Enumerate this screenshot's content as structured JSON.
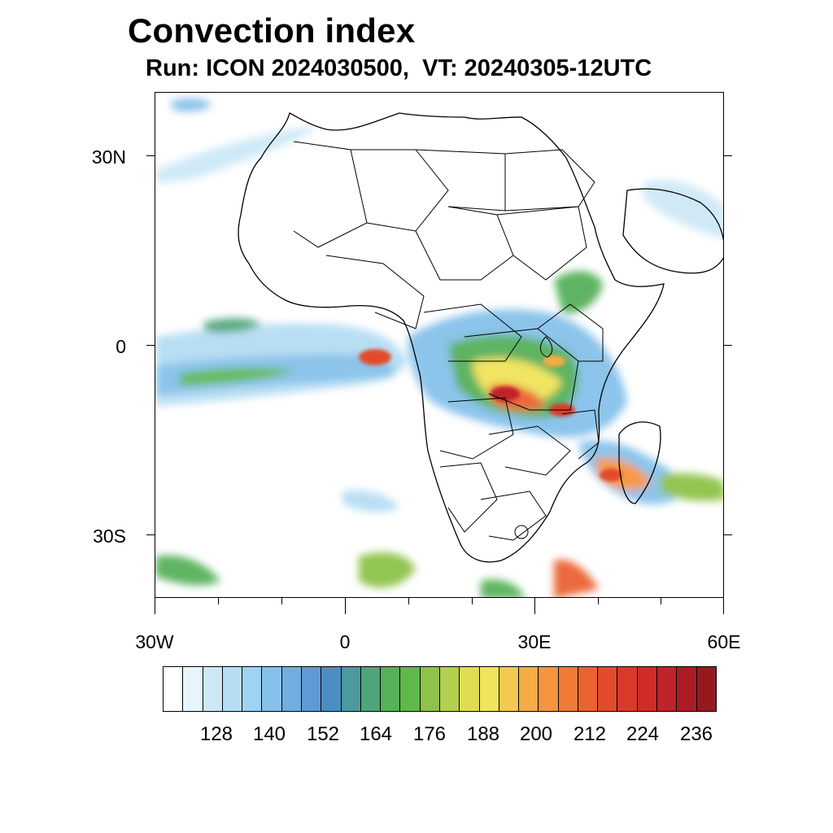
{
  "title": "Convection index",
  "subtitle": "Run: ICON 2024030500,  VT: 20240305-12UTC",
  "map": {
    "lat_range": [
      -40,
      40
    ],
    "lon_range": [
      -30,
      60
    ],
    "y_ticks": [
      {
        "lat": 30,
        "label": "30N"
      },
      {
        "lat": 0,
        "label": "0"
      },
      {
        "lat": -30,
        "label": "30S"
      }
    ],
    "x_ticks": [
      {
        "lon": -30,
        "label": "30W"
      },
      {
        "lon": 0,
        "label": "0"
      },
      {
        "lon": 30,
        "label": "30E"
      },
      {
        "lon": 60,
        "label": "60E"
      }
    ]
  },
  "colorbar": {
    "labels": [
      "128",
      "140",
      "152",
      "164",
      "176",
      "188",
      "200",
      "212",
      "224",
      "236"
    ],
    "colors": [
      "#ffffff",
      "#e8f4fc",
      "#cde8f7",
      "#b5ddf3",
      "#9ed3f1",
      "#86c1ea",
      "#73ade0",
      "#5e9ad6",
      "#4d8ec2",
      "#4a9aa0",
      "#4fa57a",
      "#57b05a",
      "#5fb94a",
      "#8ec24a",
      "#b3cf4e",
      "#dfdc50",
      "#f0e45a",
      "#f5c84e",
      "#f6ac45",
      "#f5953d",
      "#f07a36",
      "#ea6230",
      "#e24b2c",
      "#d93a2c",
      "#cf2c2a",
      "#c1232b",
      "#ad1c24",
      "#951a20"
    ]
  }
}
